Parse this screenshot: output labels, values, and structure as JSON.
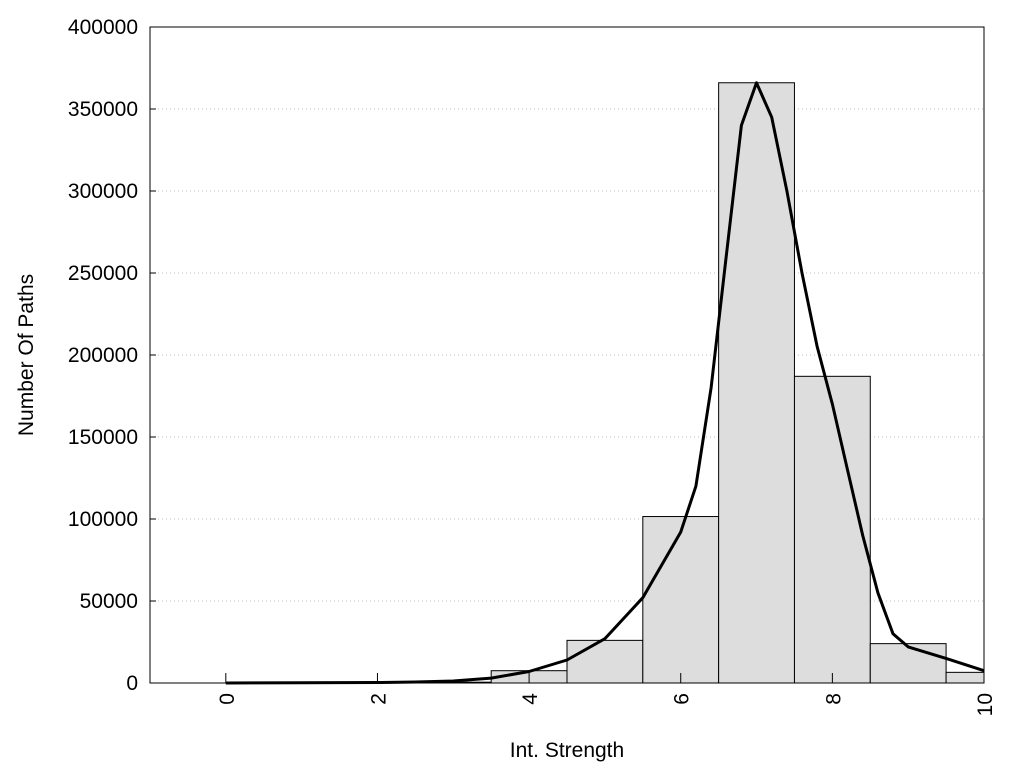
{
  "chart_data": {
    "type": "bar",
    "title": "",
    "xlabel": "Int. Strength",
    "ylabel": "Number Of Paths",
    "xlim": [
      -1,
      10
    ],
    "ylim": [
      0,
      400000
    ],
    "x_ticks": [
      0,
      2,
      4,
      6,
      8,
      10
    ],
    "x_tick_labels": [
      "0",
      "2",
      "4",
      "6",
      "8",
      "10"
    ],
    "y_ticks": [
      0,
      50000,
      100000,
      150000,
      200000,
      250000,
      300000,
      350000,
      400000
    ],
    "y_tick_labels": [
      "0",
      "50000",
      "100000",
      "150000",
      "200000",
      "250000",
      "300000",
      "350000",
      "400000"
    ],
    "grid": "horizontal-dotted",
    "bins": [
      {
        "x": 0,
        "value": 0
      },
      {
        "x": 1,
        "value": 0
      },
      {
        "x": 2,
        "value": 0
      },
      {
        "x": 3,
        "value": 500
      },
      {
        "x": 4,
        "value": 7500
      },
      {
        "x": 5,
        "value": 26000
      },
      {
        "x": 6,
        "value": 101500
      },
      {
        "x": 7,
        "value": 366000
      },
      {
        "x": 8,
        "value": 187000
      },
      {
        "x": 9,
        "value": 24000
      },
      {
        "x": 10,
        "value": 6500
      }
    ],
    "bin_width": 1,
    "bar_color": "#dddddd",
    "curve_color": "#000000",
    "curve": [
      [
        0,
        0
      ],
      [
        1,
        100
      ],
      [
        2,
        300
      ],
      [
        2.5,
        600
      ],
      [
        3,
        1200
      ],
      [
        3.5,
        3000
      ],
      [
        4,
        7000
      ],
      [
        4.5,
        14000
      ],
      [
        5,
        27000
      ],
      [
        5.5,
        52000
      ],
      [
        6,
        92000
      ],
      [
        6.2,
        120000
      ],
      [
        6.4,
        180000
      ],
      [
        6.6,
        260000
      ],
      [
        6.8,
        340000
      ],
      [
        7,
        366000
      ],
      [
        7.2,
        345000
      ],
      [
        7.4,
        300000
      ],
      [
        7.6,
        250000
      ],
      [
        7.8,
        205000
      ],
      [
        8,
        170000
      ],
      [
        8.2,
        130000
      ],
      [
        8.4,
        90000
      ],
      [
        8.6,
        55000
      ],
      [
        8.8,
        30000
      ],
      [
        9,
        22000
      ],
      [
        9.5,
        15000
      ],
      [
        10,
        7500
      ]
    ]
  }
}
